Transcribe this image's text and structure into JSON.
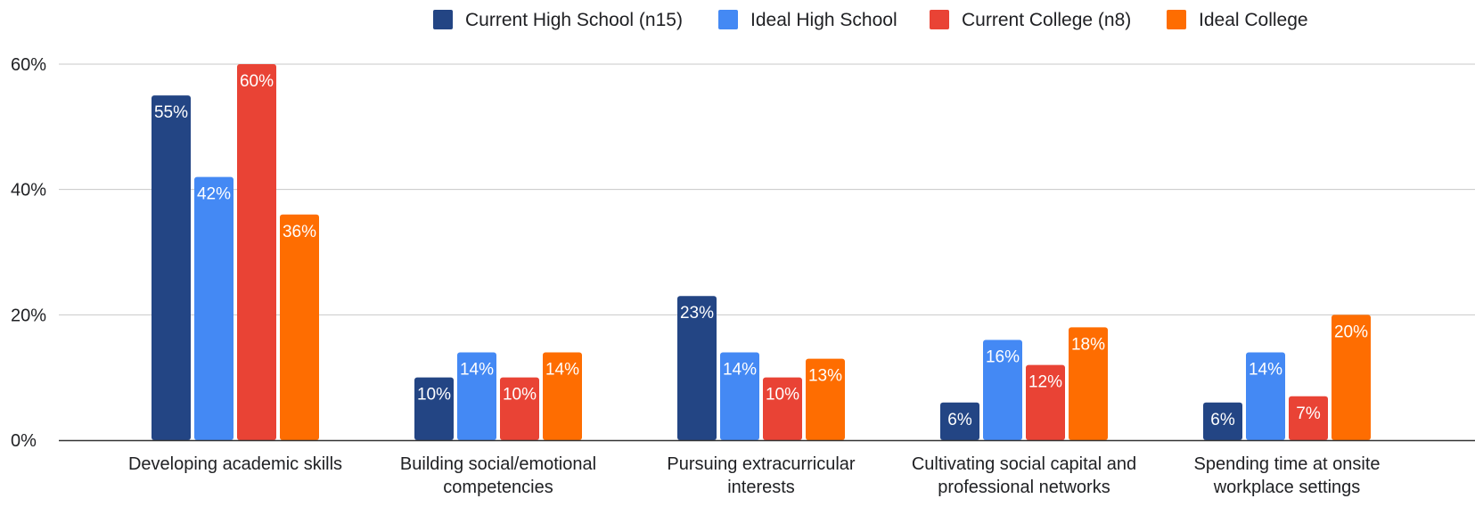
{
  "chart_data": {
    "type": "bar",
    "categories": [
      [
        "Developing academic skills"
      ],
      [
        "Building social/emotional",
        "competencies"
      ],
      [
        "Pursuing extracurricular",
        "interests"
      ],
      [
        "Cultivating social capital and",
        "professional networks"
      ],
      [
        "Spending time at onsite",
        "workplace settings"
      ]
    ],
    "series": [
      {
        "name": "Current High School (n15)",
        "color": "#234584",
        "values": [
          55,
          10,
          23,
          6,
          6
        ],
        "labels": [
          "55%",
          "10%",
          "23%",
          "6%",
          "6%"
        ]
      },
      {
        "name": "Ideal High School",
        "color": "#4489f4",
        "values": [
          42,
          14,
          14,
          16,
          14
        ],
        "labels": [
          "42%",
          "14%",
          "14%",
          "16%",
          "14%"
        ]
      },
      {
        "name": "Current College (n8)",
        "color": "#e94335",
        "values": [
          60,
          10,
          10,
          12,
          7
        ],
        "labels": [
          "60%",
          "10%",
          "10%",
          "12%",
          "7%"
        ]
      },
      {
        "name": "Ideal College",
        "color": "#fe6d01",
        "values": [
          36,
          14,
          13,
          18,
          20
        ],
        "labels": [
          "36%",
          "14%",
          "13%",
          "18%",
          "20%"
        ]
      }
    ],
    "y_ticks": [
      0,
      20,
      40,
      60
    ],
    "y_tick_labels": [
      "0%",
      "20%",
      "40%",
      "60%"
    ],
    "ylim": [
      0,
      60
    ],
    "grid": true,
    "legend_position": "top-right"
  }
}
